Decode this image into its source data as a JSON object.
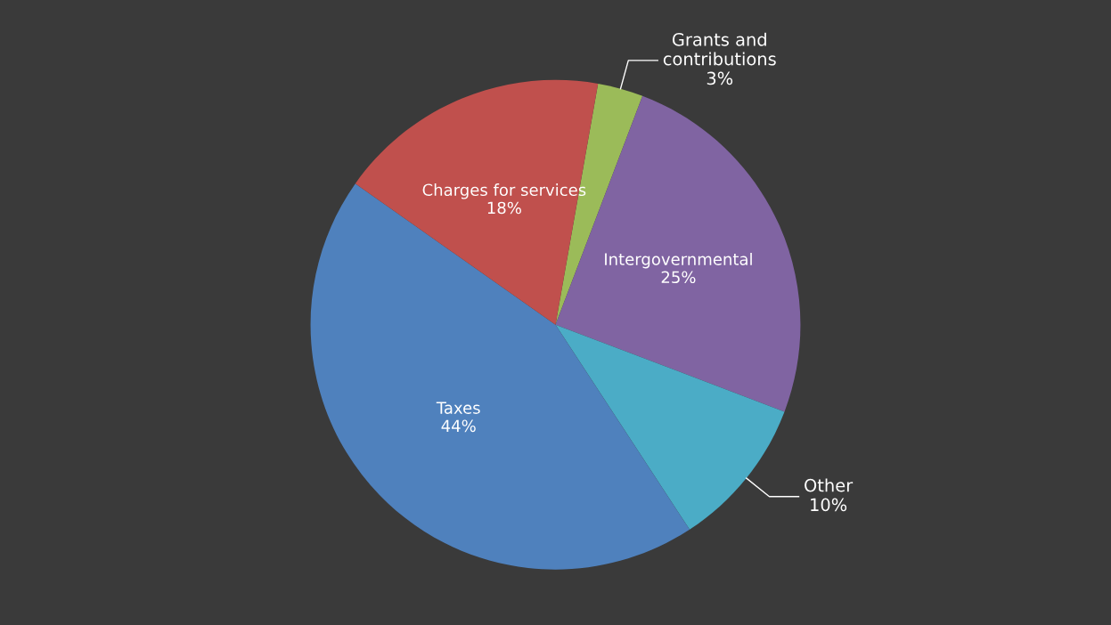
{
  "chart_data": {
    "type": "pie",
    "categories": [
      "Grants and\ncontributions",
      "Intergovernmental",
      "Other",
      "Taxes",
      "Charges for services"
    ],
    "values": [
      3,
      25,
      10,
      44,
      18
    ],
    "value_labels": [
      "3%",
      "25%",
      "10%",
      "44%",
      "18%"
    ],
    "colors": [
      "#9bbb59",
      "#8064a2",
      "#4bacc6",
      "#4f81bd",
      "#c0504d"
    ],
    "legend": false
  }
}
